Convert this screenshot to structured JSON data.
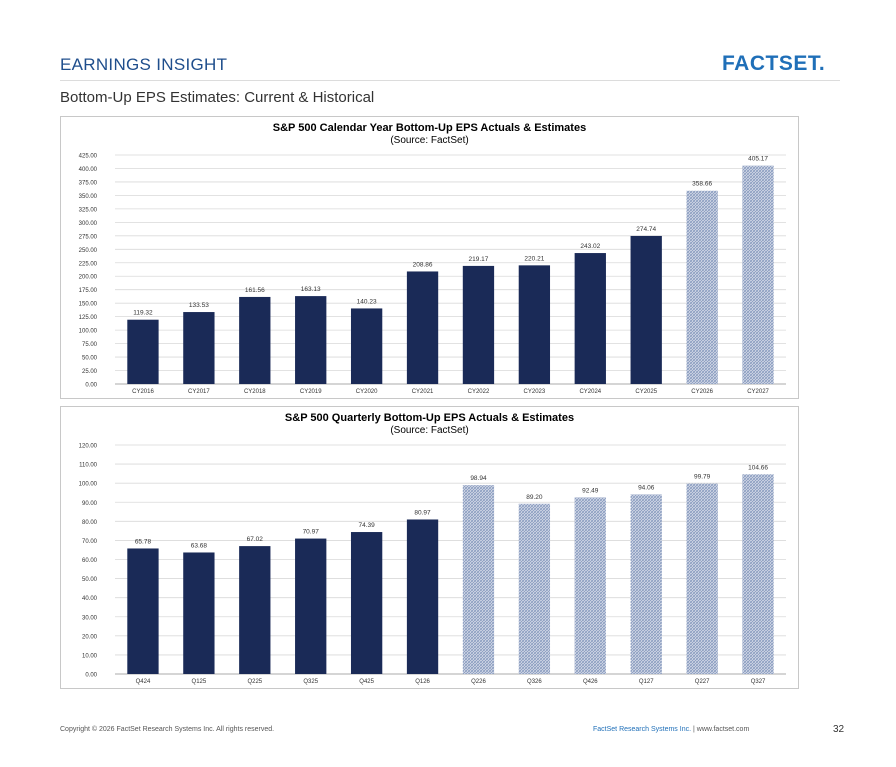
{
  "header": {
    "title": "EARNINGS INSIGHT",
    "logo_text": "FACTSET.",
    "subtitle": "Bottom-Up EPS Estimates: Current & Historical"
  },
  "colors": {
    "actual_bar": "#1a2a57",
    "estimate_bar": "#8fa0c2",
    "estimate_bg": "#ffffff",
    "brand_blue": "#1f6fb8"
  },
  "chart_data": [
    {
      "type": "bar",
      "title": "S&P 500 Calendar Year Bottom-Up EPS Actuals & Estimates",
      "subtitle": "(Source: FactSet)",
      "categories": [
        "CY2016",
        "CY2017",
        "CY2018",
        "CY2019",
        "CY2020",
        "CY2021",
        "CY2022",
        "CY2023",
        "CY2024",
        "CY2025",
        "CY2026",
        "CY2027"
      ],
      "values": [
        119.32,
        133.53,
        161.56,
        163.13,
        140.23,
        208.86,
        219.17,
        220.21,
        243.02,
        274.74,
        358.66,
        405.17
      ],
      "value_labels": [
        "119.32",
        "133.53",
        "161.56",
        "163.13",
        "140.23",
        "208.86",
        "219.17",
        "220.21",
        "243.02",
        "274.74",
        "358.66",
        "405.17"
      ],
      "estimate": [
        false,
        false,
        false,
        false,
        false,
        false,
        false,
        false,
        false,
        false,
        true,
        true
      ],
      "ylim": [
        0,
        425
      ],
      "yticks": [
        "0.00",
        "25.00",
        "50.00",
        "75.00",
        "100.00",
        "125.00",
        "150.00",
        "175.00",
        "200.00",
        "225.00",
        "250.00",
        "275.00",
        "300.00",
        "325.00",
        "350.00",
        "375.00",
        "400.00",
        "425.00"
      ],
      "grid": true,
      "legend": "none"
    },
    {
      "type": "bar",
      "title": "S&P 500 Quarterly Bottom-Up EPS Actuals & Estimates",
      "subtitle": "(Source: FactSet)",
      "categories": [
        "Q424",
        "Q125",
        "Q225",
        "Q325",
        "Q425",
        "Q126",
        "Q226",
        "Q326",
        "Q426",
        "Q127",
        "Q227",
        "Q327"
      ],
      "values": [
        65.78,
        63.68,
        67.02,
        70.97,
        74.39,
        80.97,
        98.94,
        89.2,
        92.49,
        94.06,
        99.79,
        104.66
      ],
      "value_labels": [
        "65.78",
        "63.68",
        "67.02",
        "70.97",
        "74.39",
        "80.97",
        "98.94",
        "89.20",
        "92.49",
        "94.06",
        "99.79",
        "104.66"
      ],
      "estimate": [
        false,
        false,
        false,
        false,
        false,
        false,
        true,
        true,
        true,
        true,
        true,
        true
      ],
      "ylim": [
        0,
        120
      ],
      "yticks": [
        "0.00",
        "10.00",
        "20.00",
        "30.00",
        "40.00",
        "50.00",
        "60.00",
        "70.00",
        "80.00",
        "90.00",
        "100.00",
        "110.00",
        "120.00"
      ],
      "grid": true,
      "legend": "none"
    }
  ],
  "footer": {
    "copyright": "Copyright © 2026 FactSet Research Systems Inc. All rights reserved.",
    "company": "FactSet Research Systems Inc.",
    "separator": " | ",
    "website": "www.factset.com",
    "page_number": "32"
  }
}
